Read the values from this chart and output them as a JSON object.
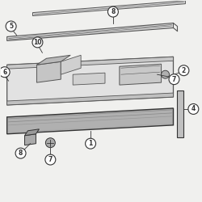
{
  "bg_color": "#f0f0ee",
  "line_color": "#555555",
  "dark_color": "#333333",
  "fig_width": 2.5,
  "fig_height": 2.5,
  "dpi": 100,
  "label_bg": "#ffffff",
  "label_border": "#444444"
}
